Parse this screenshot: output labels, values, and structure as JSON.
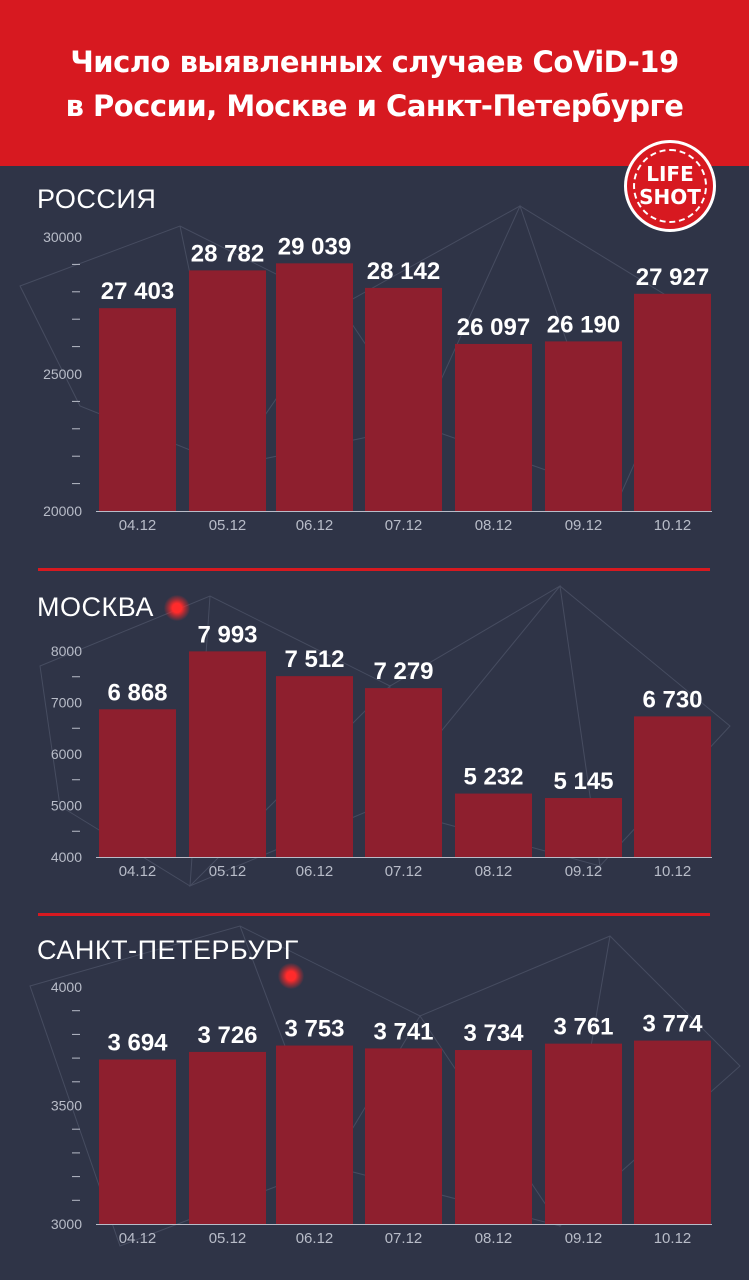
{
  "header": {
    "title_line1": "Число выявленных случаев CoViD-19",
    "title_line2": "в России, Москве и Санкт-Петербурге",
    "logo_line1": "LIFE",
    "logo_line2": "SHOT"
  },
  "colors": {
    "accent": "#d71920",
    "bar": "#8e1f2e",
    "background": "#2f3447",
    "text": "#ffffff",
    "axis": "#b8bcc8"
  },
  "chart_data": [
    {
      "type": "bar",
      "title": "РОССИЯ",
      "categories": [
        "04.12",
        "05.12",
        "06.12",
        "07.12",
        "08.12",
        "09.12",
        "10.12"
      ],
      "values": [
        27403,
        28782,
        29039,
        28142,
        26097,
        26190,
        27927
      ],
      "value_labels": [
        "27 403",
        "28 782",
        "29 039",
        "28 142",
        "26 097",
        "26 190",
        "27 927"
      ],
      "ylim": [
        20000,
        30000
      ],
      "y_ticks": [
        20000,
        25000,
        30000
      ],
      "minor_step": 1000
    },
    {
      "type": "bar",
      "title": "МОСКВА",
      "categories": [
        "04.12",
        "05.12",
        "06.12",
        "07.12",
        "08.12",
        "09.12",
        "10.12"
      ],
      "values": [
        6868,
        7993,
        7512,
        7279,
        5232,
        5145,
        6730
      ],
      "value_labels": [
        "6 868",
        "7 993",
        "7 512",
        "7 279",
        "5 232",
        "5 145",
        "6 730"
      ],
      "ylim": [
        4000,
        8000
      ],
      "y_ticks": [
        4000,
        5000,
        6000,
        7000,
        8000
      ],
      "minor_step": 500
    },
    {
      "type": "bar",
      "title": "САНКТ-ПЕТЕРБУРГ",
      "categories": [
        "04.12",
        "05.12",
        "06.12",
        "07.12",
        "08.12",
        "09.12",
        "10.12"
      ],
      "values": [
        3694,
        3726,
        3753,
        3741,
        3734,
        3761,
        3774
      ],
      "value_labels": [
        "3 694",
        "3 726",
        "3 753",
        "3 741",
        "3 734",
        "3 761",
        "3 774"
      ],
      "ylim": [
        3000,
        4000
      ],
      "y_ticks": [
        3000,
        3500,
        4000
      ],
      "minor_step": 100
    }
  ]
}
